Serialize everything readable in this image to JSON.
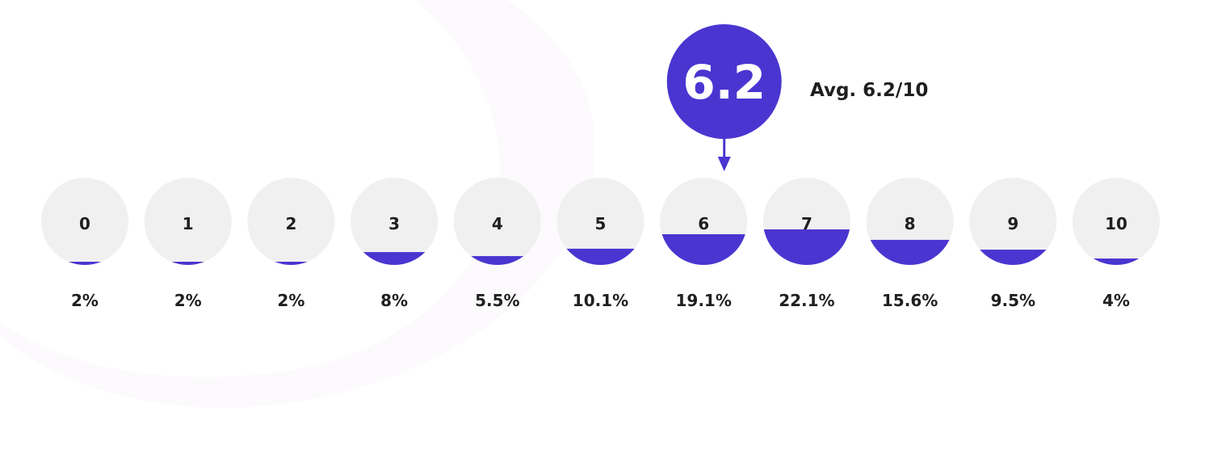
{
  "chart_data": {
    "type": "bar",
    "categories": [
      "0",
      "1",
      "2",
      "3",
      "4",
      "5",
      "6",
      "7",
      "8",
      "9",
      "10"
    ],
    "values": [
      2,
      2,
      2,
      8,
      5.5,
      10.1,
      19.1,
      22.1,
      15.6,
      9.5,
      4
    ],
    "value_labels": [
      "2%",
      "2%",
      "2%",
      "8%",
      "5.5%",
      "10.1%",
      "19.1%",
      "22.1%",
      "15.6%",
      "9.5%",
      "4%"
    ],
    "average": 6.2,
    "average_label": "6.2",
    "average_caption": "Avg. 6.2/10",
    "fill_color": "#4a35d1",
    "circle_color": "#f0f0f0"
  }
}
